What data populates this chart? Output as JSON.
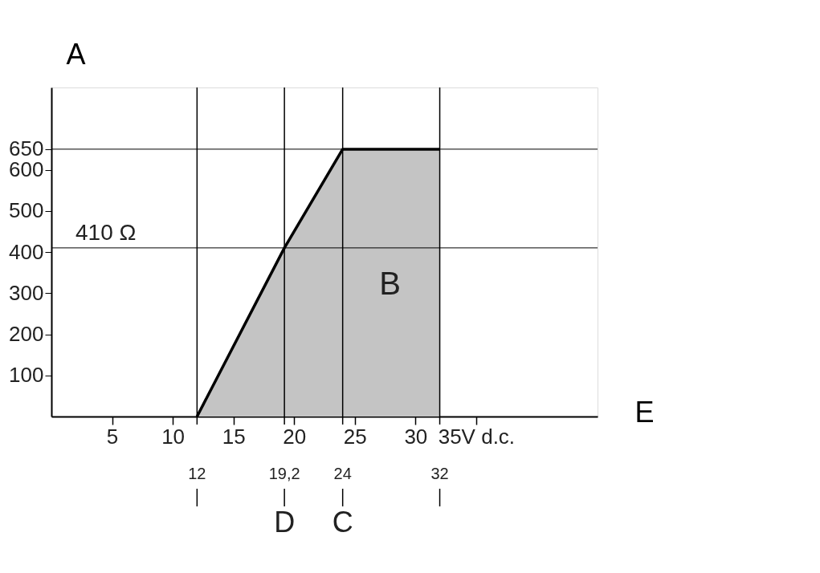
{
  "chart_data": {
    "type": "area",
    "xlabel": "E",
    "ylabel": "A",
    "x": [
      12,
      19.2,
      24,
      32
    ],
    "series": [
      {
        "color": "#c4c4c4",
        "values": [
          0,
          410,
          650,
          650
        ]
      }
    ],
    "xlim": [
      0,
      45
    ],
    "ylim": [
      0,
      800
    ],
    "xticks": [
      5,
      10,
      15,
      20,
      25,
      30,
      {
        "value": 35,
        "label": "35V d.c."
      }
    ],
    "yticks": [
      100,
      200,
      300,
      400,
      500,
      600,
      650
    ],
    "ref_lines": [
      {
        "axis": "y",
        "value": 650,
        "label": null
      },
      {
        "axis": "y",
        "value": 410,
        "label": "410 Ω"
      },
      {
        "axis": "x",
        "value": 12,
        "label": "12"
      },
      {
        "axis": "x",
        "value": 19.2,
        "label": "19,2"
      },
      {
        "axis": "x",
        "value": 24,
        "label": "24"
      },
      {
        "axis": "x",
        "value": 32,
        "label": "32"
      }
    ],
    "annotations": [
      "B",
      "D",
      "C"
    ],
    "grid": false,
    "marker": "none",
    "line_style": "solid"
  }
}
